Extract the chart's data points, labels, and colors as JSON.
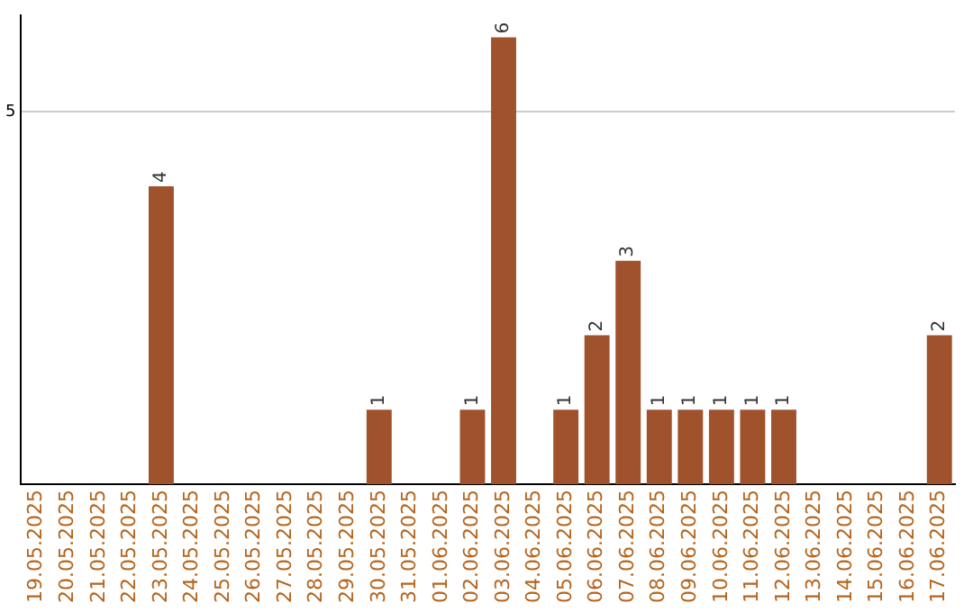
{
  "chart_data": {
    "type": "bar",
    "categories": [
      "19.05.2025",
      "20.05.2025",
      "21.05.2025",
      "22.05.2025",
      "23.05.2025",
      "24.05.2025",
      "25.05.2025",
      "26.05.2025",
      "27.05.2025",
      "28.05.2025",
      "29.05.2025",
      "30.05.2025",
      "31.05.2025",
      "01.06.2025",
      "02.06.2025",
      "03.06.2025",
      "04.06.2025",
      "05.06.2025",
      "06.06.2025",
      "07.06.2025",
      "08.06.2025",
      "09.06.2025",
      "10.06.2025",
      "11.06.2025",
      "12.06.2025",
      "13.06.2025",
      "14.06.2025",
      "15.06.2025",
      "16.06.2025",
      "17.06.2025"
    ],
    "values": [
      0,
      0,
      0,
      0,
      4,
      0,
      0,
      0,
      0,
      0,
      0,
      1,
      0,
      0,
      1,
      6,
      0,
      1,
      2,
      3,
      1,
      1,
      1,
      1,
      1,
      0,
      0,
      0,
      0,
      2
    ],
    "value_labels": [
      null,
      null,
      null,
      null,
      "4",
      null,
      null,
      null,
      null,
      null,
      null,
      "1",
      null,
      null,
      "1",
      "6",
      null,
      "1",
      "2",
      "3",
      "1",
      "1",
      "1",
      "1",
      "1",
      null,
      null,
      null,
      null,
      "2"
    ],
    "color": "#a0522d",
    "ylim": [
      0,
      6.3
    ],
    "yticks": [
      5
    ],
    "grid": "y",
    "legend": false
  }
}
